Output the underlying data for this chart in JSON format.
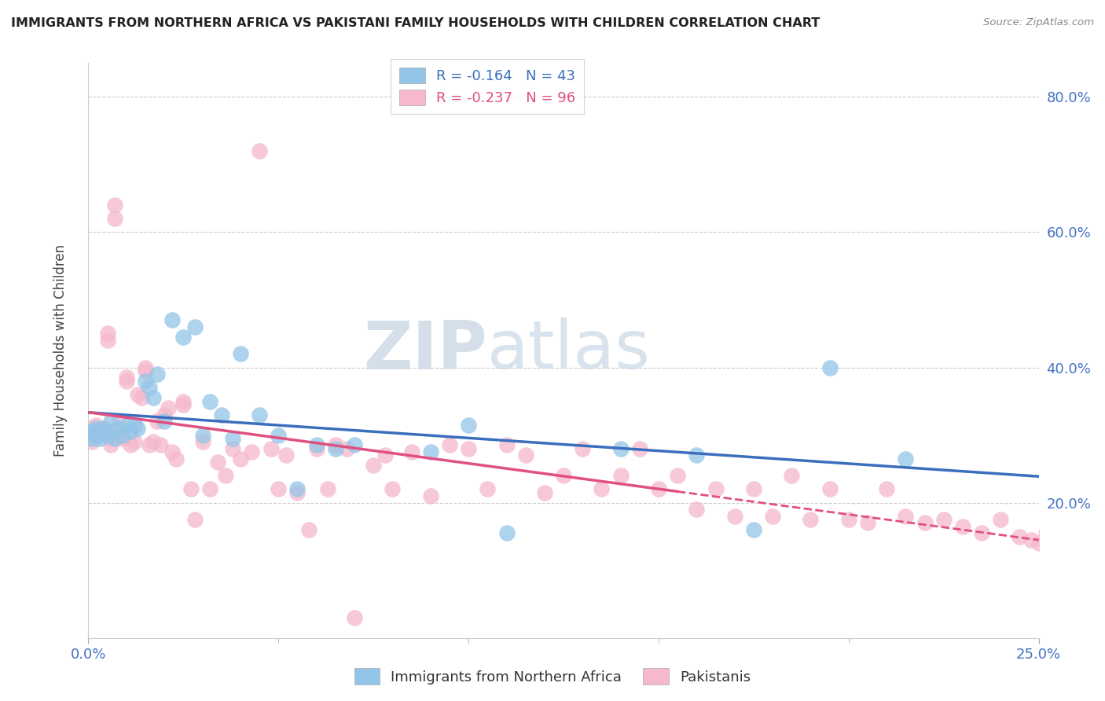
{
  "title": "IMMIGRANTS FROM NORTHERN AFRICA VS PAKISTANI FAMILY HOUSEHOLDS WITH CHILDREN CORRELATION CHART",
  "source": "Source: ZipAtlas.com",
  "ylabel": "Family Households with Children",
  "xlim": [
    0,
    0.25
  ],
  "ylim": [
    0,
    0.85
  ],
  "yticks": [
    0.2,
    0.4,
    0.6,
    0.8
  ],
  "ytick_labels": [
    "20.0%",
    "40.0%",
    "60.0%",
    "80.0%"
  ],
  "xtick_left": 0.0,
  "xtick_right": 0.25,
  "xtick_left_label": "0.0%",
  "xtick_right_label": "25.0%",
  "legend1_label": "Immigrants from Northern Africa",
  "legend2_label": "Pakistanis",
  "R1": "-0.164",
  "N1": "43",
  "R2": "-0.237",
  "N2": "96",
  "color_blue": "#93c5e8",
  "color_pink": "#f5b8cc",
  "color_blue_line": "#3a6fbd",
  "color_pink_line": "#e05080",
  "watermark_zip": "ZIP",
  "watermark_atlas": "atlas",
  "blue_x": [
    0.001,
    0.001,
    0.002,
    0.002,
    0.003,
    0.003,
    0.004,
    0.005,
    0.006,
    0.007,
    0.008,
    0.009,
    0.01,
    0.011,
    0.012,
    0.013,
    0.015,
    0.016,
    0.017,
    0.018,
    0.02,
    0.022,
    0.025,
    0.028,
    0.03,
    0.032,
    0.035,
    0.038,
    0.04,
    0.045,
    0.05,
    0.055,
    0.06,
    0.065,
    0.07,
    0.09,
    0.1,
    0.11,
    0.14,
    0.16,
    0.175,
    0.195,
    0.215
  ],
  "blue_y": [
    0.305,
    0.295,
    0.31,
    0.3,
    0.305,
    0.295,
    0.31,
    0.3,
    0.32,
    0.295,
    0.31,
    0.3,
    0.315,
    0.305,
    0.315,
    0.31,
    0.38,
    0.37,
    0.355,
    0.39,
    0.32,
    0.47,
    0.445,
    0.46,
    0.3,
    0.35,
    0.33,
    0.295,
    0.42,
    0.33,
    0.3,
    0.22,
    0.285,
    0.28,
    0.285,
    0.275,
    0.315,
    0.155,
    0.28,
    0.27,
    0.16,
    0.4,
    0.265
  ],
  "pink_x": [
    0.001,
    0.001,
    0.002,
    0.002,
    0.003,
    0.003,
    0.004,
    0.004,
    0.005,
    0.005,
    0.006,
    0.006,
    0.007,
    0.007,
    0.008,
    0.008,
    0.009,
    0.01,
    0.01,
    0.011,
    0.012,
    0.013,
    0.014,
    0.015,
    0.015,
    0.016,
    0.017,
    0.018,
    0.019,
    0.02,
    0.021,
    0.022,
    0.023,
    0.025,
    0.025,
    0.027,
    0.028,
    0.03,
    0.032,
    0.034,
    0.036,
    0.038,
    0.04,
    0.043,
    0.045,
    0.048,
    0.05,
    0.052,
    0.055,
    0.058,
    0.06,
    0.063,
    0.065,
    0.068,
    0.07,
    0.075,
    0.078,
    0.08,
    0.085,
    0.09,
    0.095,
    0.1,
    0.105,
    0.11,
    0.115,
    0.12,
    0.125,
    0.13,
    0.135,
    0.14,
    0.145,
    0.15,
    0.155,
    0.16,
    0.165,
    0.17,
    0.175,
    0.18,
    0.185,
    0.19,
    0.195,
    0.2,
    0.205,
    0.21,
    0.215,
    0.22,
    0.225,
    0.23,
    0.235,
    0.24,
    0.245,
    0.248,
    0.25,
    0.252,
    0.255,
    0.258
  ],
  "pink_y": [
    0.29,
    0.31,
    0.315,
    0.3,
    0.3,
    0.31,
    0.31,
    0.305,
    0.44,
    0.45,
    0.285,
    0.295,
    0.64,
    0.62,
    0.3,
    0.32,
    0.295,
    0.385,
    0.38,
    0.285,
    0.29,
    0.36,
    0.355,
    0.4,
    0.395,
    0.285,
    0.29,
    0.32,
    0.285,
    0.33,
    0.34,
    0.275,
    0.265,
    0.35,
    0.345,
    0.22,
    0.175,
    0.29,
    0.22,
    0.26,
    0.24,
    0.28,
    0.265,
    0.275,
    0.72,
    0.28,
    0.22,
    0.27,
    0.215,
    0.16,
    0.28,
    0.22,
    0.285,
    0.28,
    0.03,
    0.255,
    0.27,
    0.22,
    0.275,
    0.21,
    0.285,
    0.28,
    0.22,
    0.285,
    0.27,
    0.215,
    0.24,
    0.28,
    0.22,
    0.24,
    0.28,
    0.22,
    0.24,
    0.19,
    0.22,
    0.18,
    0.22,
    0.18,
    0.24,
    0.175,
    0.22,
    0.175,
    0.17,
    0.22,
    0.18,
    0.17,
    0.175,
    0.165,
    0.155,
    0.175,
    0.15,
    0.145,
    0.14,
    0.155,
    0.135,
    0.13
  ]
}
